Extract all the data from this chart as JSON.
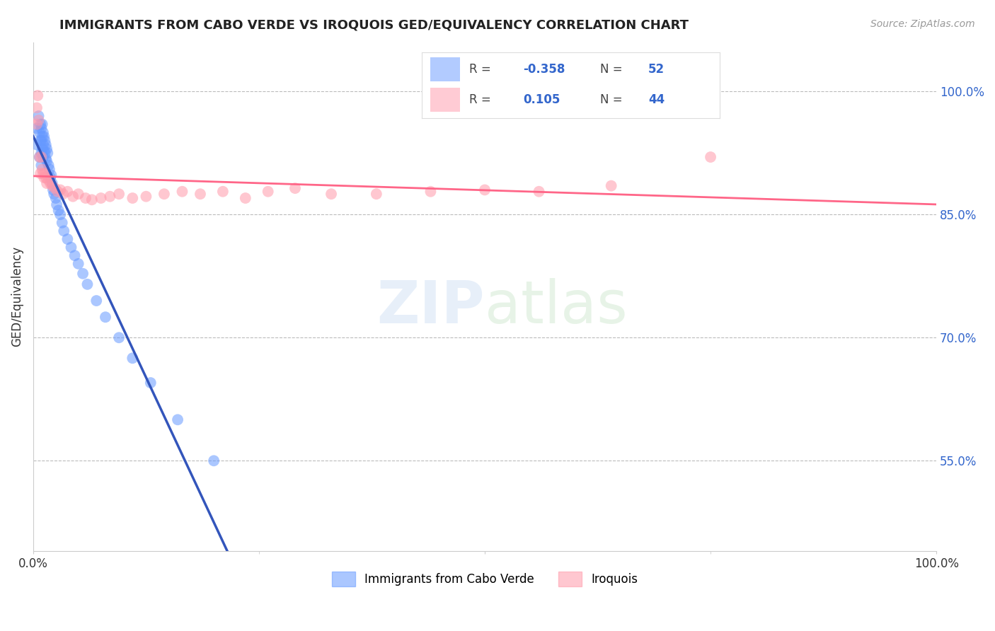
{
  "title": "IMMIGRANTS FROM CABO VERDE VS IROQUOIS GED/EQUIVALENCY CORRELATION CHART",
  "source": "Source: ZipAtlas.com",
  "ylabel": "GED/Equivalency",
  "xlim": [
    0.0,
    1.0
  ],
  "ylim": [
    0.44,
    1.06
  ],
  "yticks": [
    0.55,
    0.7,
    0.85,
    1.0
  ],
  "ytick_labels": [
    "55.0%",
    "70.0%",
    "85.0%",
    "100.0%"
  ],
  "xticks": [
    0.0,
    1.0
  ],
  "xtick_labels": [
    "0.0%",
    "100.0%"
  ],
  "cabo_verde_R": -0.358,
  "cabo_verde_N": 52,
  "iroquois_R": 0.105,
  "iroquois_N": 44,
  "cabo_verde_color": "#6699FF",
  "iroquois_color": "#FF99AA",
  "cabo_verde_line_color": "#3355BB",
  "iroquois_line_color": "#FF6688",
  "background_color": "#FFFFFF",
  "grid_color": "#BBBBBB",
  "cabo_verde_x": [
    0.004,
    0.004,
    0.006,
    0.007,
    0.007,
    0.008,
    0.008,
    0.009,
    0.009,
    0.009,
    0.009,
    0.01,
    0.01,
    0.01,
    0.011,
    0.011,
    0.011,
    0.012,
    0.012,
    0.013,
    0.013,
    0.014,
    0.014,
    0.015,
    0.015,
    0.016,
    0.017,
    0.018,
    0.019,
    0.02,
    0.021,
    0.022,
    0.023,
    0.025,
    0.026,
    0.028,
    0.03,
    0.032,
    0.034,
    0.038,
    0.042,
    0.046,
    0.05,
    0.055,
    0.06,
    0.07,
    0.08,
    0.095,
    0.11,
    0.13,
    0.16,
    0.2
  ],
  "cabo_verde_y": [
    0.955,
    0.935,
    0.97,
    0.95,
    0.92,
    0.96,
    0.94,
    0.955,
    0.94,
    0.925,
    0.91,
    0.96,
    0.945,
    0.93,
    0.95,
    0.935,
    0.92,
    0.945,
    0.928,
    0.94,
    0.925,
    0.935,
    0.918,
    0.93,
    0.915,
    0.925,
    0.91,
    0.905,
    0.895,
    0.898,
    0.888,
    0.88,
    0.875,
    0.87,
    0.862,
    0.855,
    0.85,
    0.84,
    0.83,
    0.82,
    0.81,
    0.8,
    0.79,
    0.778,
    0.765,
    0.745,
    0.725,
    0.7,
    0.675,
    0.645,
    0.6,
    0.55
  ],
  "iroquois_x": [
    0.004,
    0.004,
    0.005,
    0.006,
    0.007,
    0.008,
    0.009,
    0.01,
    0.011,
    0.012,
    0.013,
    0.014,
    0.015,
    0.017,
    0.019,
    0.021,
    0.024,
    0.027,
    0.03,
    0.033,
    0.038,
    0.044,
    0.05,
    0.058,
    0.065,
    0.075,
    0.085,
    0.095,
    0.11,
    0.125,
    0.145,
    0.165,
    0.185,
    0.21,
    0.235,
    0.26,
    0.29,
    0.33,
    0.38,
    0.44,
    0.5,
    0.56,
    0.64,
    0.75
  ],
  "iroquois_y": [
    0.98,
    0.96,
    0.995,
    0.965,
    0.92,
    0.9,
    0.92,
    0.905,
    0.9,
    0.895,
    0.9,
    0.895,
    0.888,
    0.892,
    0.888,
    0.885,
    0.882,
    0.878,
    0.88,
    0.875,
    0.878,
    0.872,
    0.875,
    0.87,
    0.868,
    0.87,
    0.872,
    0.875,
    0.87,
    0.872,
    0.875,
    0.878,
    0.875,
    0.878,
    0.87,
    0.878,
    0.882,
    0.875,
    0.875,
    0.878,
    0.88,
    0.878,
    0.885,
    0.92
  ]
}
